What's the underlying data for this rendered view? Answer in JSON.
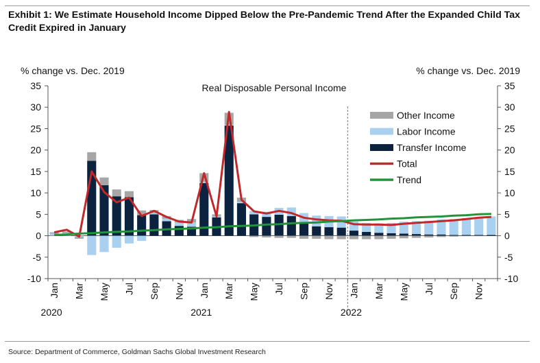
{
  "header": {
    "title": "Exhibit 1: We Estimate Household Income Dipped Below the Pre-Pandemic Trend After the Expanded Child Tax Credit Expired in January"
  },
  "footer": {
    "source": "Source: Department of Commerce, Goldman Sachs Global Investment Research"
  },
  "chart_data": {
    "type": "bar",
    "title": "Real Disposable Personal Income",
    "ylabel_left": "% change vs. Dec. 2019",
    "ylabel_right": "% change vs. Dec. 2019",
    "ylim": [
      -10,
      35
    ],
    "yticks": [
      -10,
      -5,
      0,
      5,
      10,
      15,
      20,
      25,
      30,
      35
    ],
    "x_tick_labels": [
      "Jan",
      "Mar",
      "May",
      "Jul",
      "Sep",
      "Nov",
      "Jan",
      "Mar",
      "May",
      "Jul",
      "Sep",
      "Nov",
      "Jan",
      "Mar",
      "May",
      "Jul",
      "Sep",
      "Nov"
    ],
    "year_labels": [
      {
        "text": "2020",
        "month_index": 0
      },
      {
        "text": "2021",
        "month_index": 12
      },
      {
        "text": "2022",
        "month_index": 24
      }
    ],
    "months": [
      "Jan 2020",
      "Feb 2020",
      "Mar 2020",
      "Apr 2020",
      "May 2020",
      "Jun 2020",
      "Jul 2020",
      "Aug 2020",
      "Sep 2020",
      "Oct 2020",
      "Nov 2020",
      "Dec 2020",
      "Jan 2021",
      "Feb 2021",
      "Mar 2021",
      "Apr 2021",
      "May 2021",
      "Jun 2021",
      "Jul 2021",
      "Aug 2021",
      "Sep 2021",
      "Oct 2021",
      "Nov 2021",
      "Dec 2021",
      "Jan 2022",
      "Feb 2022",
      "Mar 2022",
      "Apr 2022",
      "May 2022",
      "Jun 2022",
      "Jul 2022",
      "Aug 2022",
      "Sep 2022",
      "Oct 2022",
      "Nov 2022",
      "Dec 2022"
    ],
    "forecast_start_index": 24,
    "legend_position": "right",
    "series": [
      {
        "name": "Other Income",
        "kind": "bar",
        "color": "#a6a6a6",
        "values": [
          0.3,
          0.4,
          -0.4,
          2.0,
          1.8,
          1.6,
          1.4,
          1.1,
          0.7,
          0.6,
          0.6,
          0.8,
          2.0,
          0.5,
          2.8,
          1.0,
          -0.3,
          -0.4,
          -0.5,
          -0.5,
          -0.7,
          -0.7,
          -0.8,
          -0.8,
          -0.8,
          -0.8,
          -0.8,
          -0.7,
          -0.6,
          -0.5,
          -0.4,
          -0.3,
          -0.2,
          -0.1,
          -0.1,
          0.0
        ]
      },
      {
        "name": "Labor Income",
        "kind": "bar",
        "color": "#a9d0ef",
        "values": [
          0.5,
          0.6,
          -0.3,
          -4.5,
          -3.8,
          -2.8,
          -1.8,
          -1.2,
          0.3,
          0.6,
          0.8,
          1.0,
          0.3,
          0.2,
          0.2,
          0.3,
          0.8,
          1.2,
          1.6,
          2.0,
          2.2,
          2.5,
          2.6,
          2.6,
          2.1,
          2.1,
          2.2,
          2.4,
          2.8,
          3.0,
          3.2,
          3.5,
          3.7,
          3.9,
          4.1,
          4.3
        ]
      },
      {
        "name": "Transfer Income",
        "kind": "bar",
        "color": "#0c2340",
        "values": [
          0.0,
          0.0,
          0.0,
          17.5,
          11.8,
          9.2,
          9.0,
          4.8,
          5.0,
          3.4,
          2.3,
          2.1,
          12.3,
          4.3,
          25.7,
          7.6,
          5.0,
          4.4,
          4.9,
          4.6,
          3.1,
          2.2,
          2.0,
          1.9,
          1.2,
          0.9,
          0.7,
          0.6,
          0.5,
          0.4,
          0.3,
          0.3,
          0.2,
          0.2,
          0.2,
          0.2
        ]
      },
      {
        "name": "Total",
        "kind": "line",
        "color": "#c0282a",
        "values": [
          0.8,
          1.4,
          -0.2,
          15.0,
          10.2,
          7.8,
          8.9,
          4.6,
          5.8,
          4.4,
          3.3,
          3.1,
          14.6,
          4.5,
          28.9,
          8.4,
          5.7,
          5.2,
          5.8,
          5.3,
          4.2,
          3.8,
          3.6,
          3.5,
          2.7,
          2.6,
          2.6,
          2.5,
          2.8,
          3.0,
          3.2,
          3.4,
          3.6,
          3.9,
          4.2,
          4.4
        ]
      },
      {
        "name": "Trend",
        "kind": "line",
        "color": "#22933a",
        "values": [
          0.2,
          0.3,
          0.5,
          0.6,
          0.8,
          0.9,
          1.0,
          1.2,
          1.3,
          1.5,
          1.6,
          1.7,
          1.9,
          2.0,
          2.2,
          2.3,
          2.4,
          2.6,
          2.7,
          2.9,
          3.0,
          3.1,
          3.3,
          3.4,
          3.6,
          3.7,
          3.8,
          4.0,
          4.1,
          4.3,
          4.4,
          4.5,
          4.7,
          4.8,
          5.0,
          5.1
        ]
      }
    ]
  }
}
